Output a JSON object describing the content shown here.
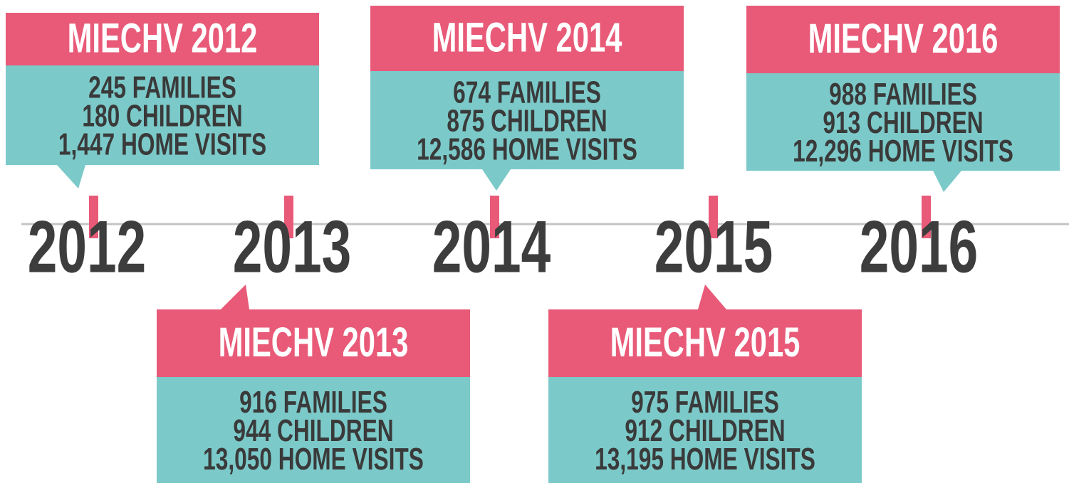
{
  "years": [
    "2012",
    "2013",
    "2014",
    "2015",
    "2016"
  ],
  "cards": [
    {
      "title": "MIECHV 2012",
      "lines": [
        "245 FAMILIES",
        "180 CHILDREN",
        "1,447 HOME VISITS"
      ]
    },
    {
      "title": "MIECHV 2013",
      "lines": [
        "916 FAMILIES",
        "944 CHILDREN",
        "13,050 HOME VISITS"
      ]
    },
    {
      "title": "MIECHV 2014",
      "lines": [
        "674 FAMILIES",
        "875 CHILDREN",
        "12,586 HOME VISITS"
      ]
    },
    {
      "title": "MIECHV 2015",
      "lines": [
        "975 FAMILIES",
        "912 CHILDREN",
        "13,195 HOME VISITS"
      ]
    },
    {
      "title": "MIECHV 2016",
      "lines": [
        "988 FAMILIES",
        "913 CHILDREN",
        "12,296 HOME VISITS"
      ]
    }
  ]
}
